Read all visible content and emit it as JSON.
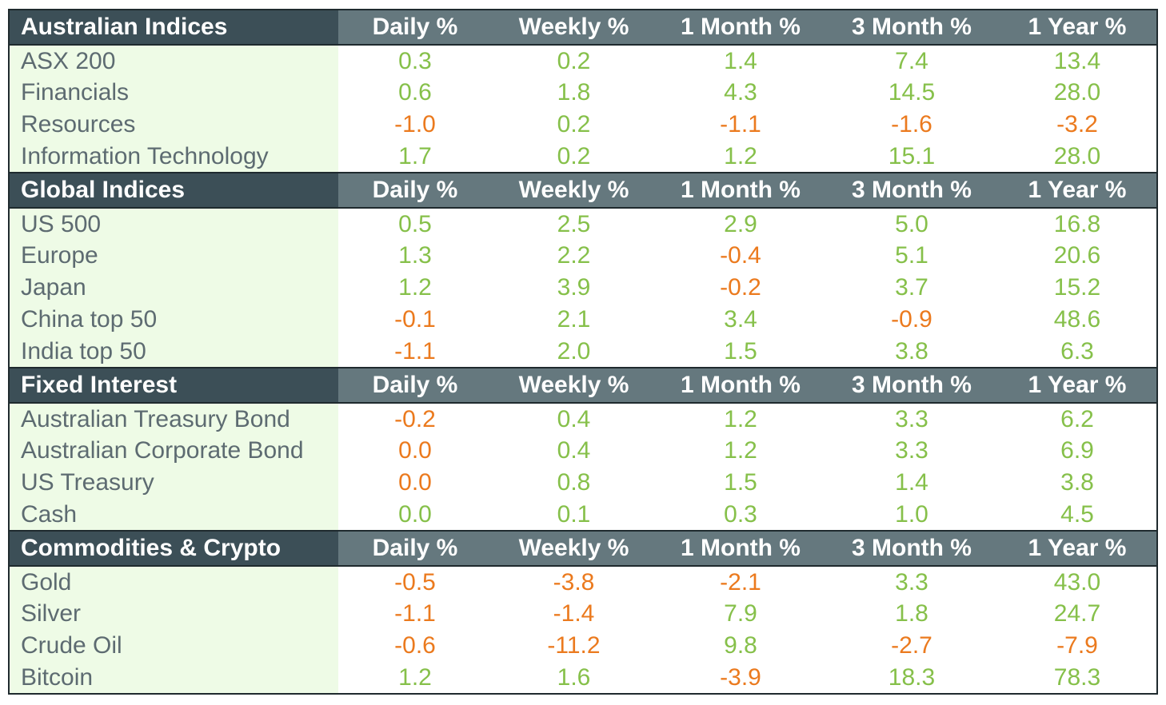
{
  "columns": [
    "Daily %",
    "Weekly %",
    "1 Month %",
    "3 Month %",
    "1 Year %"
  ],
  "colors": {
    "positive": "#86c04a",
    "negative": "#eb7a1e",
    "header_dark": "#3c4f57",
    "header": "#65787e",
    "label_bg": "#eefbe6"
  },
  "sections": [
    {
      "title": "Australian Indices",
      "rows": [
        {
          "label": "ASX 200",
          "values": [
            "0.3",
            "0.2",
            "1.4",
            "7.4",
            "13.4"
          ]
        },
        {
          "label": "Financials",
          "values": [
            "0.6",
            "1.8",
            "4.3",
            "14.5",
            "28.0"
          ]
        },
        {
          "label": "Resources",
          "values": [
            "-1.0",
            "0.2",
            "-1.1",
            "-1.6",
            "-3.2"
          ]
        },
        {
          "label": "Information Technology",
          "values": [
            "1.7",
            "0.2",
            "1.2",
            "15.1",
            "28.0"
          ]
        }
      ]
    },
    {
      "title": "Global Indices",
      "rows": [
        {
          "label": "US 500",
          "values": [
            "0.5",
            "2.5",
            "2.9",
            "5.0",
            "16.8"
          ]
        },
        {
          "label": "Europe",
          "values": [
            "1.3",
            "2.2",
            "-0.4",
            "5.1",
            "20.6"
          ]
        },
        {
          "label": "Japan",
          "values": [
            "1.2",
            "3.9",
            "-0.2",
            "3.7",
            "15.2"
          ]
        },
        {
          "label": "China top 50",
          "values": [
            "-0.1",
            "2.1",
            "3.4",
            "-0.9",
            "48.6"
          ]
        },
        {
          "label": "India top 50",
          "values": [
            "-1.1",
            "2.0",
            "1.5",
            "3.8",
            "6.3"
          ]
        }
      ]
    },
    {
      "title": "Fixed Interest",
      "rows": [
        {
          "label": "Australian Treasury Bond",
          "values": [
            "-0.2",
            "0.4",
            "1.2",
            "3.3",
            "6.2"
          ]
        },
        {
          "label": "Australian Corporate Bond",
          "values": [
            "0.0",
            "0.4",
            "1.2",
            "3.3",
            "6.9"
          ]
        },
        {
          "label": "US Treasury",
          "values": [
            "0.0",
            "0.8",
            "1.5",
            "1.4",
            "3.8"
          ]
        },
        {
          "label": "Cash",
          "values": [
            "0.0",
            "0.1",
            "0.3",
            "1.0",
            "4.5"
          ]
        }
      ]
    },
    {
      "title": "Commodities & Crypto",
      "rows": [
        {
          "label": "Gold",
          "values": [
            "-0.5",
            "-3.8",
            "-2.1",
            "3.3",
            "43.0"
          ]
        },
        {
          "label": "Silver",
          "values": [
            "-1.1",
            "-1.4",
            "7.9",
            "1.8",
            "24.7"
          ]
        },
        {
          "label": "Crude Oil",
          "values": [
            "-0.6",
            "-11.2",
            "9.8",
            "-2.7",
            "-7.9"
          ]
        },
        {
          "label": "Bitcoin",
          "values": [
            "1.2",
            "1.6",
            "-3.9",
            "18.3",
            "78.3"
          ]
        }
      ]
    }
  ],
  "chart_data": {
    "type": "table",
    "columns": [
      "Daily %",
      "Weekly %",
      "1 Month %",
      "3 Month %",
      "1 Year %"
    ],
    "groups": [
      {
        "name": "Australian Indices",
        "rows": {
          "ASX 200": [
            0.3,
            0.2,
            1.4,
            7.4,
            13.4
          ],
          "Financials": [
            0.6,
            1.8,
            4.3,
            14.5,
            28.0
          ],
          "Resources": [
            -1.0,
            0.2,
            -1.1,
            -1.6,
            -3.2
          ],
          "Information Technology": [
            1.7,
            0.2,
            1.2,
            15.1,
            28.0
          ]
        }
      },
      {
        "name": "Global Indices",
        "rows": {
          "US 500": [
            0.5,
            2.5,
            2.9,
            5.0,
            16.8
          ],
          "Europe": [
            1.3,
            2.2,
            -0.4,
            5.1,
            20.6
          ],
          "Japan": [
            1.2,
            3.9,
            -0.2,
            3.7,
            15.2
          ],
          "China top 50": [
            -0.1,
            2.1,
            3.4,
            -0.9,
            48.6
          ],
          "India top 50": [
            -1.1,
            2.0,
            1.5,
            3.8,
            6.3
          ]
        }
      },
      {
        "name": "Fixed Interest",
        "rows": {
          "Australian Treasury Bond": [
            -0.2,
            0.4,
            1.2,
            3.3,
            6.2
          ],
          "Australian Corporate Bond": [
            0.0,
            0.4,
            1.2,
            3.3,
            6.9
          ],
          "US Treasury": [
            0.0,
            0.8,
            1.5,
            1.4,
            3.8
          ],
          "Cash": [
            0.0,
            0.1,
            0.3,
            1.0,
            4.5
          ]
        }
      },
      {
        "name": "Commodities & Crypto",
        "rows": {
          "Gold": [
            -0.5,
            -3.8,
            -2.1,
            3.3,
            43.0
          ],
          "Silver": [
            -1.1,
            -1.4,
            7.9,
            1.8,
            24.7
          ],
          "Crude Oil": [
            -0.6,
            -11.2,
            9.8,
            -2.7,
            -7.9
          ],
          "Bitcoin": [
            1.2,
            1.6,
            -3.9,
            18.3,
            78.3
          ]
        }
      }
    ]
  }
}
